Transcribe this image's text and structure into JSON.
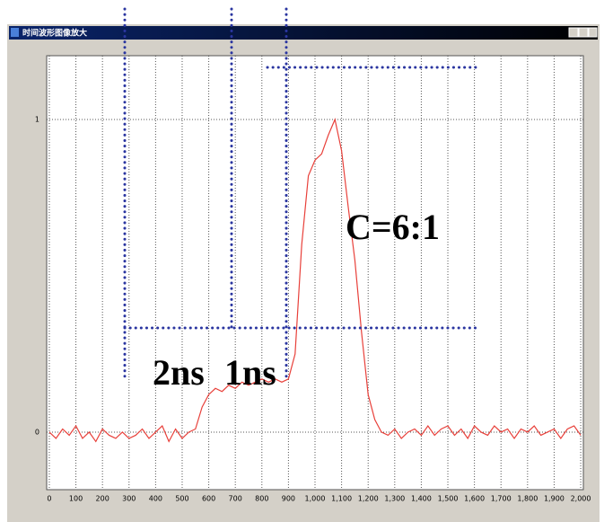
{
  "chart_data": {
    "type": "line",
    "title": "时间波形图像放大",
    "x": [
      0,
      25,
      50,
      75,
      100,
      125,
      150,
      175,
      200,
      225,
      250,
      275,
      300,
      325,
      350,
      375,
      400,
      425,
      450,
      475,
      500,
      525,
      550,
      575,
      600,
      625,
      650,
      675,
      700,
      725,
      750,
      775,
      800,
      825,
      850,
      875,
      900,
      925,
      950,
      975,
      1000,
      1025,
      1050,
      1075,
      1100,
      1125,
      1150,
      1175,
      1200,
      1225,
      1250,
      1275,
      1300,
      1325,
      1350,
      1375,
      1400,
      1425,
      1450,
      1475,
      1500,
      1525,
      1550,
      1575,
      1600,
      1625,
      1650,
      1675,
      1700,
      1725,
      1750,
      1775,
      1800,
      1825,
      1850,
      1875,
      1900,
      1925,
      1950,
      1975,
      2000
    ],
    "series": [
      {
        "color": "#e8403a",
        "values": [
          0.0,
          -0.02,
          0.01,
          -0.01,
          0.02,
          -0.02,
          0.0,
          -0.03,
          0.01,
          -0.01,
          -0.02,
          0.0,
          -0.02,
          -0.01,
          0.01,
          -0.02,
          0.0,
          0.02,
          -0.03,
          0.01,
          -0.02,
          0.0,
          0.01,
          0.08,
          0.12,
          0.14,
          0.13,
          0.15,
          0.14,
          0.16,
          0.15,
          0.16,
          0.17,
          0.16,
          0.17,
          0.16,
          0.17,
          0.25,
          0.6,
          0.82,
          0.87,
          0.89,
          0.95,
          1.0,
          0.9,
          0.72,
          0.55,
          0.32,
          0.12,
          0.04,
          0.0,
          -0.01,
          0.01,
          -0.02,
          0.0,
          0.01,
          -0.01,
          0.02,
          -0.01,
          0.01,
          0.02,
          -0.01,
          0.01,
          -0.02,
          0.02,
          0.0,
          -0.01,
          0.02,
          0.0,
          0.01,
          -0.02,
          0.01,
          0.0,
          0.02,
          -0.01,
          0.0,
          0.01,
          -0.02,
          0.01,
          0.02,
          -0.01
        ]
      }
    ],
    "xlim": [
      -10,
      2010
    ],
    "ylim": [
      -0.184,
      1.204
    ],
    "xticks": [
      0,
      100,
      200,
      300,
      400,
      500,
      600,
      700,
      800,
      900,
      {
        "value": 1000,
        "label": "1,000"
      },
      {
        "value": 1100,
        "label": "1,100"
      },
      {
        "value": 1200,
        "label": "1,200"
      },
      {
        "value": 1300,
        "label": "1,300"
      },
      {
        "value": 1400,
        "label": "1,400"
      },
      {
        "value": 1500,
        "label": "1,500"
      },
      {
        "value": 1600,
        "label": "1,600"
      },
      {
        "value": 1700,
        "label": "1,700"
      },
      {
        "value": 1800,
        "label": "1,800"
      },
      {
        "value": 1900,
        "label": "1,900"
      },
      {
        "value": 2000,
        "label": "2,000"
      }
    ],
    "yticks": [
      0,
      1
    ],
    "grid": true,
    "annotations": [
      "C=6:1",
      "2ns",
      "1ns"
    ]
  }
}
